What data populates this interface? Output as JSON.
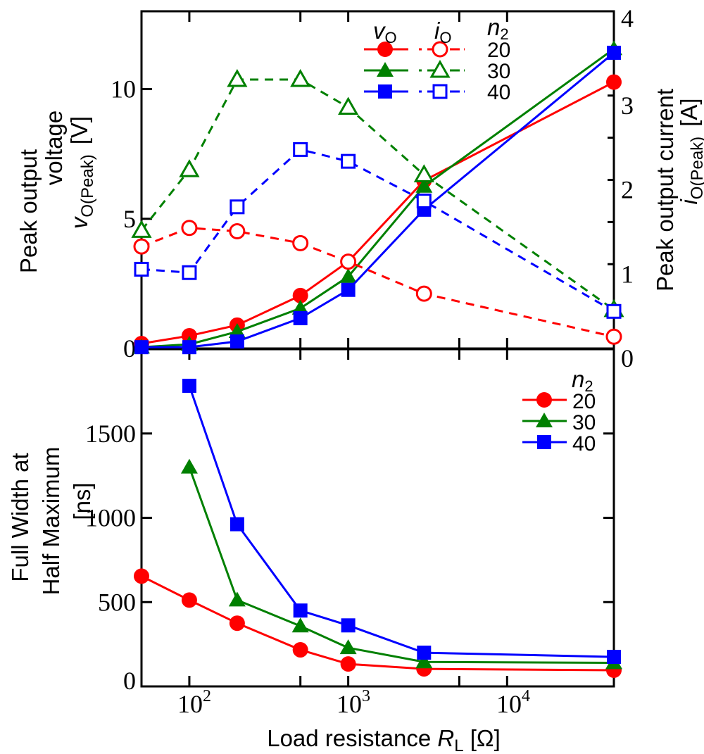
{
  "colors": {
    "n2_20": "#ff0000",
    "n2_30": "#008000",
    "n2_40": "#0000ff",
    "axis": "#000000"
  },
  "chart_data": [
    {
      "type": "line",
      "x_scale": "log",
      "x": [
        50,
        100,
        200,
        500,
        1000,
        3000,
        47000
      ],
      "xlim": [
        50,
        47000
      ],
      "y_left": {
        "label_line1": "Peak output",
        "label_line2": "voltage",
        "var": "v",
        "sub": "O(Peak)",
        "unit": "[V]",
        "lim": [
          0,
          13
        ],
        "ticks": [
          0,
          5,
          10
        ]
      },
      "y_right": {
        "label_line1": "Peak output current",
        "var": "i",
        "sub": "O(Peak)",
        "unit": "[A]",
        "lim": [
          0,
          4
        ],
        "ticks": [
          0,
          1,
          2,
          3,
          4
        ]
      },
      "legend": {
        "placement": "top-right",
        "col1": {
          "var": "v",
          "sub": "O"
        },
        "col2": {
          "var": "i",
          "sub": "O"
        },
        "col3": {
          "var": "n",
          "sub": "2"
        },
        "rows": [
          "20",
          "30",
          "40"
        ]
      },
      "series": [
        {
          "name": "20",
          "quantity": "vO",
          "axis": "left",
          "color": "#ff0000",
          "marker": "circle-filled",
          "line": "solid",
          "values": [
            0.19,
            0.49,
            0.9,
            2.04,
            3.35,
            6.47,
            10.27
          ]
        },
        {
          "name": "30",
          "quantity": "vO",
          "axis": "left",
          "color": "#008000",
          "marker": "triangle-filled",
          "line": "solid",
          "values": [
            0.05,
            0.16,
            0.65,
            1.55,
            2.77,
            6.25,
            11.55
          ]
        },
        {
          "name": "40",
          "quantity": "vO",
          "axis": "left",
          "color": "#0000ff",
          "marker": "square-filled",
          "line": "solid",
          "values": [
            0.05,
            0.05,
            0.27,
            1.17,
            2.26,
            5.35,
            11.4
          ]
        },
        {
          "name": "20",
          "quantity": "iO",
          "axis": "right",
          "color": "#ff0000",
          "marker": "circle-open",
          "line": "dashed",
          "values": [
            1.21,
            1.43,
            1.39,
            1.25,
            1.03,
            0.65,
            0.14
          ]
        },
        {
          "name": "30",
          "quantity": "iO",
          "axis": "right",
          "color": "#008000",
          "marker": "triangle-open",
          "line": "dashed",
          "values": [
            1.4,
            2.12,
            3.19,
            3.19,
            2.86,
            2.06,
            0.46
          ]
        },
        {
          "name": "40",
          "quantity": "iO",
          "axis": "right",
          "color": "#0000ff",
          "marker": "square-open",
          "line": "dashed",
          "values": [
            0.94,
            0.9,
            1.68,
            2.36,
            2.22,
            1.75,
            0.44
          ]
        }
      ]
    },
    {
      "type": "line",
      "x_scale": "log",
      "x": [
        50,
        100,
        200,
        500,
        1000,
        3000,
        47000
      ],
      "xlim": [
        50,
        47000
      ],
      "xlabel": {
        "text": "Load resistance ",
        "var": "R",
        "sub": "L",
        "unit": " [Ω]"
      },
      "xticks": [
        {
          "base": "10",
          "exp": "2",
          "value": 100
        },
        {
          "base": "10",
          "exp": "3",
          "value": 1000
        },
        {
          "base": "10",
          "exp": "4",
          "value": 10000
        }
      ],
      "y": {
        "label_line1": "Full Width at",
        "label_line2": "Half Maximum",
        "label_line3": "[ns]",
        "lim": [
          0,
          2000
        ],
        "ticks": [
          0,
          500,
          1000,
          1500
        ]
      },
      "legend": {
        "placement": "top-right",
        "title": {
          "var": "n",
          "sub": "2"
        },
        "rows": [
          "20",
          "30",
          "40"
        ]
      },
      "series": [
        {
          "name": "20",
          "color": "#ff0000",
          "marker": "circle-filled",
          "x": [
            50,
            100,
            200,
            500,
            1000,
            3000,
            47000
          ],
          "values": [
            654,
            512,
            375,
            217,
            133,
            104,
            96
          ]
        },
        {
          "name": "30",
          "color": "#008000",
          "marker": "triangle-filled",
          "x": [
            100,
            200,
            500,
            1000,
            3000,
            47000
          ],
          "values": [
            1300,
            512,
            358,
            229,
            145,
            140
          ]
        },
        {
          "name": "40",
          "color": "#0000ff",
          "marker": "square-filled",
          "x": [
            100,
            200,
            500,
            1000,
            3000,
            47000
          ],
          "values": [
            1783,
            962,
            450,
            362,
            200,
            175
          ]
        }
      ]
    }
  ]
}
